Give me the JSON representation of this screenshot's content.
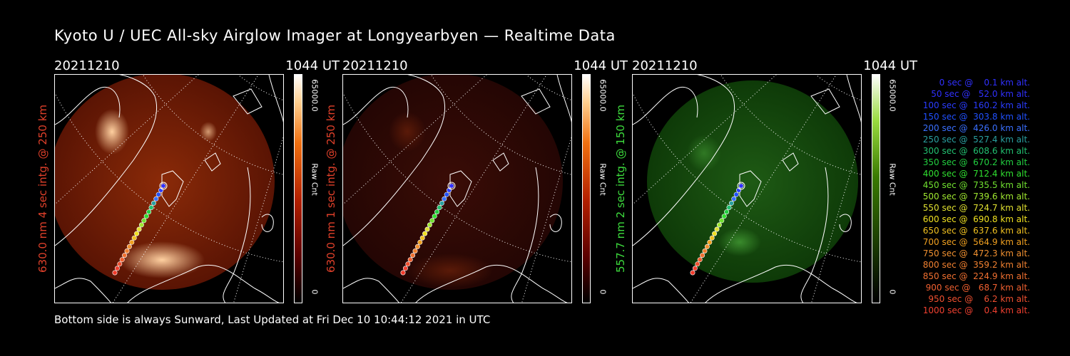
{
  "title": "Kyoto U / UEC All-sky Airglow Imager at Longyearbyen — Realtime Data",
  "footer": "Bottom side is always Sunward, Last Updated at Fri Dec 10 10:44:12 2021 in UTC",
  "panels": [
    {
      "date": "20211210",
      "time": "1044 UT",
      "label": "630.0 nm 4 sec intg. @ 250 km",
      "label_color": "#e0402a",
      "cbar_max": "65000.0",
      "cbar_min": "0",
      "cbar_title": "Raw Cnt",
      "glow": "red-bright"
    },
    {
      "date": "20211210",
      "time": "1044 UT",
      "label": "630.0 nm 1 sec intg. @ 250 km",
      "label_color": "#e0402a",
      "cbar_max": "65000.0",
      "cbar_min": "0",
      "cbar_title": "Raw Cnt",
      "glow": "red-dim"
    },
    {
      "date": "20211210",
      "time": "1044 UT",
      "label": "557.7 nm 2 sec intg. @ 150 km",
      "label_color": "#3ddc3d",
      "cbar_max": "65000.0",
      "cbar_min": "0",
      "cbar_title": "Raw Cnt",
      "glow": "green"
    }
  ],
  "legend": [
    {
      "text": "   0 sec @    0.1 km alt.",
      "color": "#3030ff"
    },
    {
      "text": "  50 sec @   52.0 km alt.",
      "color": "#3030ff"
    },
    {
      "text": " 100 sec @  160.2 km alt.",
      "color": "#2a3cff"
    },
    {
      "text": " 150 sec @  303.8 km alt.",
      "color": "#2050ff"
    },
    {
      "text": " 200 sec @  426.0 km alt.",
      "color": "#3a70ff"
    },
    {
      "text": " 250 sec @  527.4 km alt.",
      "color": "#2aa0a0"
    },
    {
      "text": " 300 sec @  608.6 km alt.",
      "color": "#22c070"
    },
    {
      "text": " 350 sec @  670.2 km alt.",
      "color": "#22d040"
    },
    {
      "text": " 400 sec @  712.4 km alt.",
      "color": "#30e030"
    },
    {
      "text": " 450 sec @  735.5 km alt.",
      "color": "#70e030"
    },
    {
      "text": " 500 sec @  739.6 km alt.",
      "color": "#a0e830"
    },
    {
      "text": " 550 sec @  724.7 km alt.",
      "color": "#e0e030"
    },
    {
      "text": " 600 sec @  690.8 km alt.",
      "color": "#f0e020"
    },
    {
      "text": " 650 sec @  637.6 km alt.",
      "color": "#f0c020"
    },
    {
      "text": " 700 sec @  564.9 km alt.",
      "color": "#f0a020"
    },
    {
      "text": " 750 sec @  472.3 km alt.",
      "color": "#f09030"
    },
    {
      "text": " 800 sec @  359.2 km alt.",
      "color": "#f08030"
    },
    {
      "text": " 850 sec @  224.9 km alt.",
      "color": "#f07030"
    },
    {
      "text": " 900 sec @   68.7 km alt.",
      "color": "#f06030"
    },
    {
      "text": " 950 sec @    6.2 km alt.",
      "color": "#f05030"
    },
    {
      "text": "1000 sec @    0.4 km alt.",
      "color": "#f04030"
    }
  ]
}
